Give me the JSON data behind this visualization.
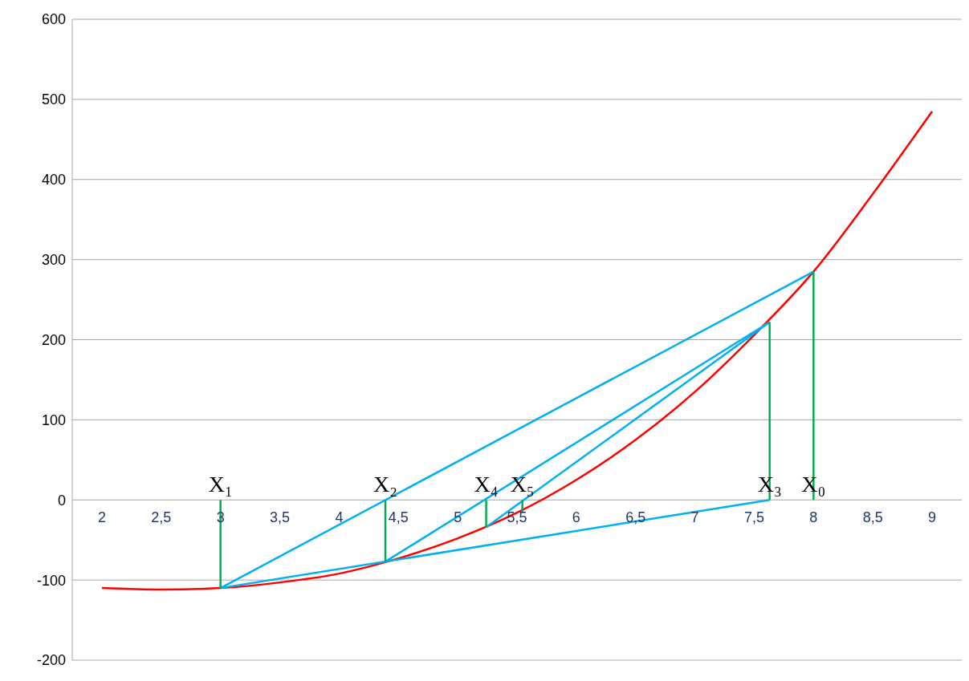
{
  "chart_data": {
    "type": "line",
    "xlim": [
      1.75,
      9.25
    ],
    "xticks": [
      2,
      {
        "value": 2.5,
        "label": "2,5"
      },
      3,
      {
        "value": 3.5,
        "label": "3,5"
      },
      4,
      {
        "value": 4.5,
        "label": "4,5"
      },
      5,
      {
        "value": 5.5,
        "label": "5,5"
      },
      6,
      {
        "value": 6.5,
        "label": "6,5"
      },
      7,
      {
        "value": 7.5,
        "label": "7,5"
      },
      8,
      {
        "value": 8.5,
        "label": "8,5"
      },
      9
    ],
    "ylim": [
      -200,
      600
    ],
    "yticks": [
      -200,
      -100,
      0,
      100,
      200,
      300,
      400,
      500,
      600
    ],
    "grid": "y",
    "line_style": "solid",
    "series": [
      {
        "color": "#ff0000",
        "x": [
          2,
          2.5,
          3,
          3.5,
          4,
          4.5,
          5,
          5.5,
          6,
          6.5,
          7,
          7.5,
          8,
          8.5,
          9
        ],
        "values": [
          -110,
          -112,
          -110,
          -103,
          -92,
          -73,
          -48,
          -16,
          25,
          75,
          135,
          206,
          285,
          382,
          485
        ]
      },
      {
        "color": "#00b0f0",
        "x": [
          3,
          8
        ],
        "values": [
          -110,
          285
        ]
      },
      {
        "color": "#00b0f0",
        "x": [
          3,
          7.63
        ],
        "values": [
          -110,
          0
        ]
      },
      {
        "color": "#00b0f0",
        "x": [
          4.39,
          7.63
        ],
        "values": [
          -77,
          222
        ]
      },
      {
        "color": "#00b0f0",
        "x": [
          5.24,
          7.63
        ],
        "values": [
          -34,
          222
        ]
      },
      {
        "color": "#00b050",
        "x": [
          3,
          3
        ],
        "values": [
          -110,
          0
        ]
      },
      {
        "color": "#00b050",
        "x": [
          4.39,
          4.39
        ],
        "values": [
          -77,
          0
        ]
      },
      {
        "color": "#00b050",
        "x": [
          5.24,
          5.24
        ],
        "values": [
          -34,
          0
        ]
      },
      {
        "color": "#00b050",
        "x": [
          5.545,
          5.545
        ],
        "values": [
          -16,
          0
        ]
      },
      {
        "color": "#00b050",
        "x": [
          7.63,
          7.63
        ],
        "values": [
          0,
          222
        ]
      },
      {
        "color": "#00b050",
        "x": [
          8,
          8
        ],
        "values": [
          0,
          285
        ]
      }
    ],
    "annotations": [
      {
        "text": "X₀",
        "x": 8,
        "y": 0
      },
      {
        "text": "X₁",
        "x": 3,
        "y": 0
      },
      {
        "text": "X₂",
        "x": 4.39,
        "y": 0
      },
      {
        "text": "X₃",
        "x": 7.63,
        "y": 0
      },
      {
        "text": "X₄",
        "x": 5.24,
        "y": 0
      },
      {
        "text": "X₅",
        "x": 5.545,
        "y": 0
      }
    ]
  }
}
